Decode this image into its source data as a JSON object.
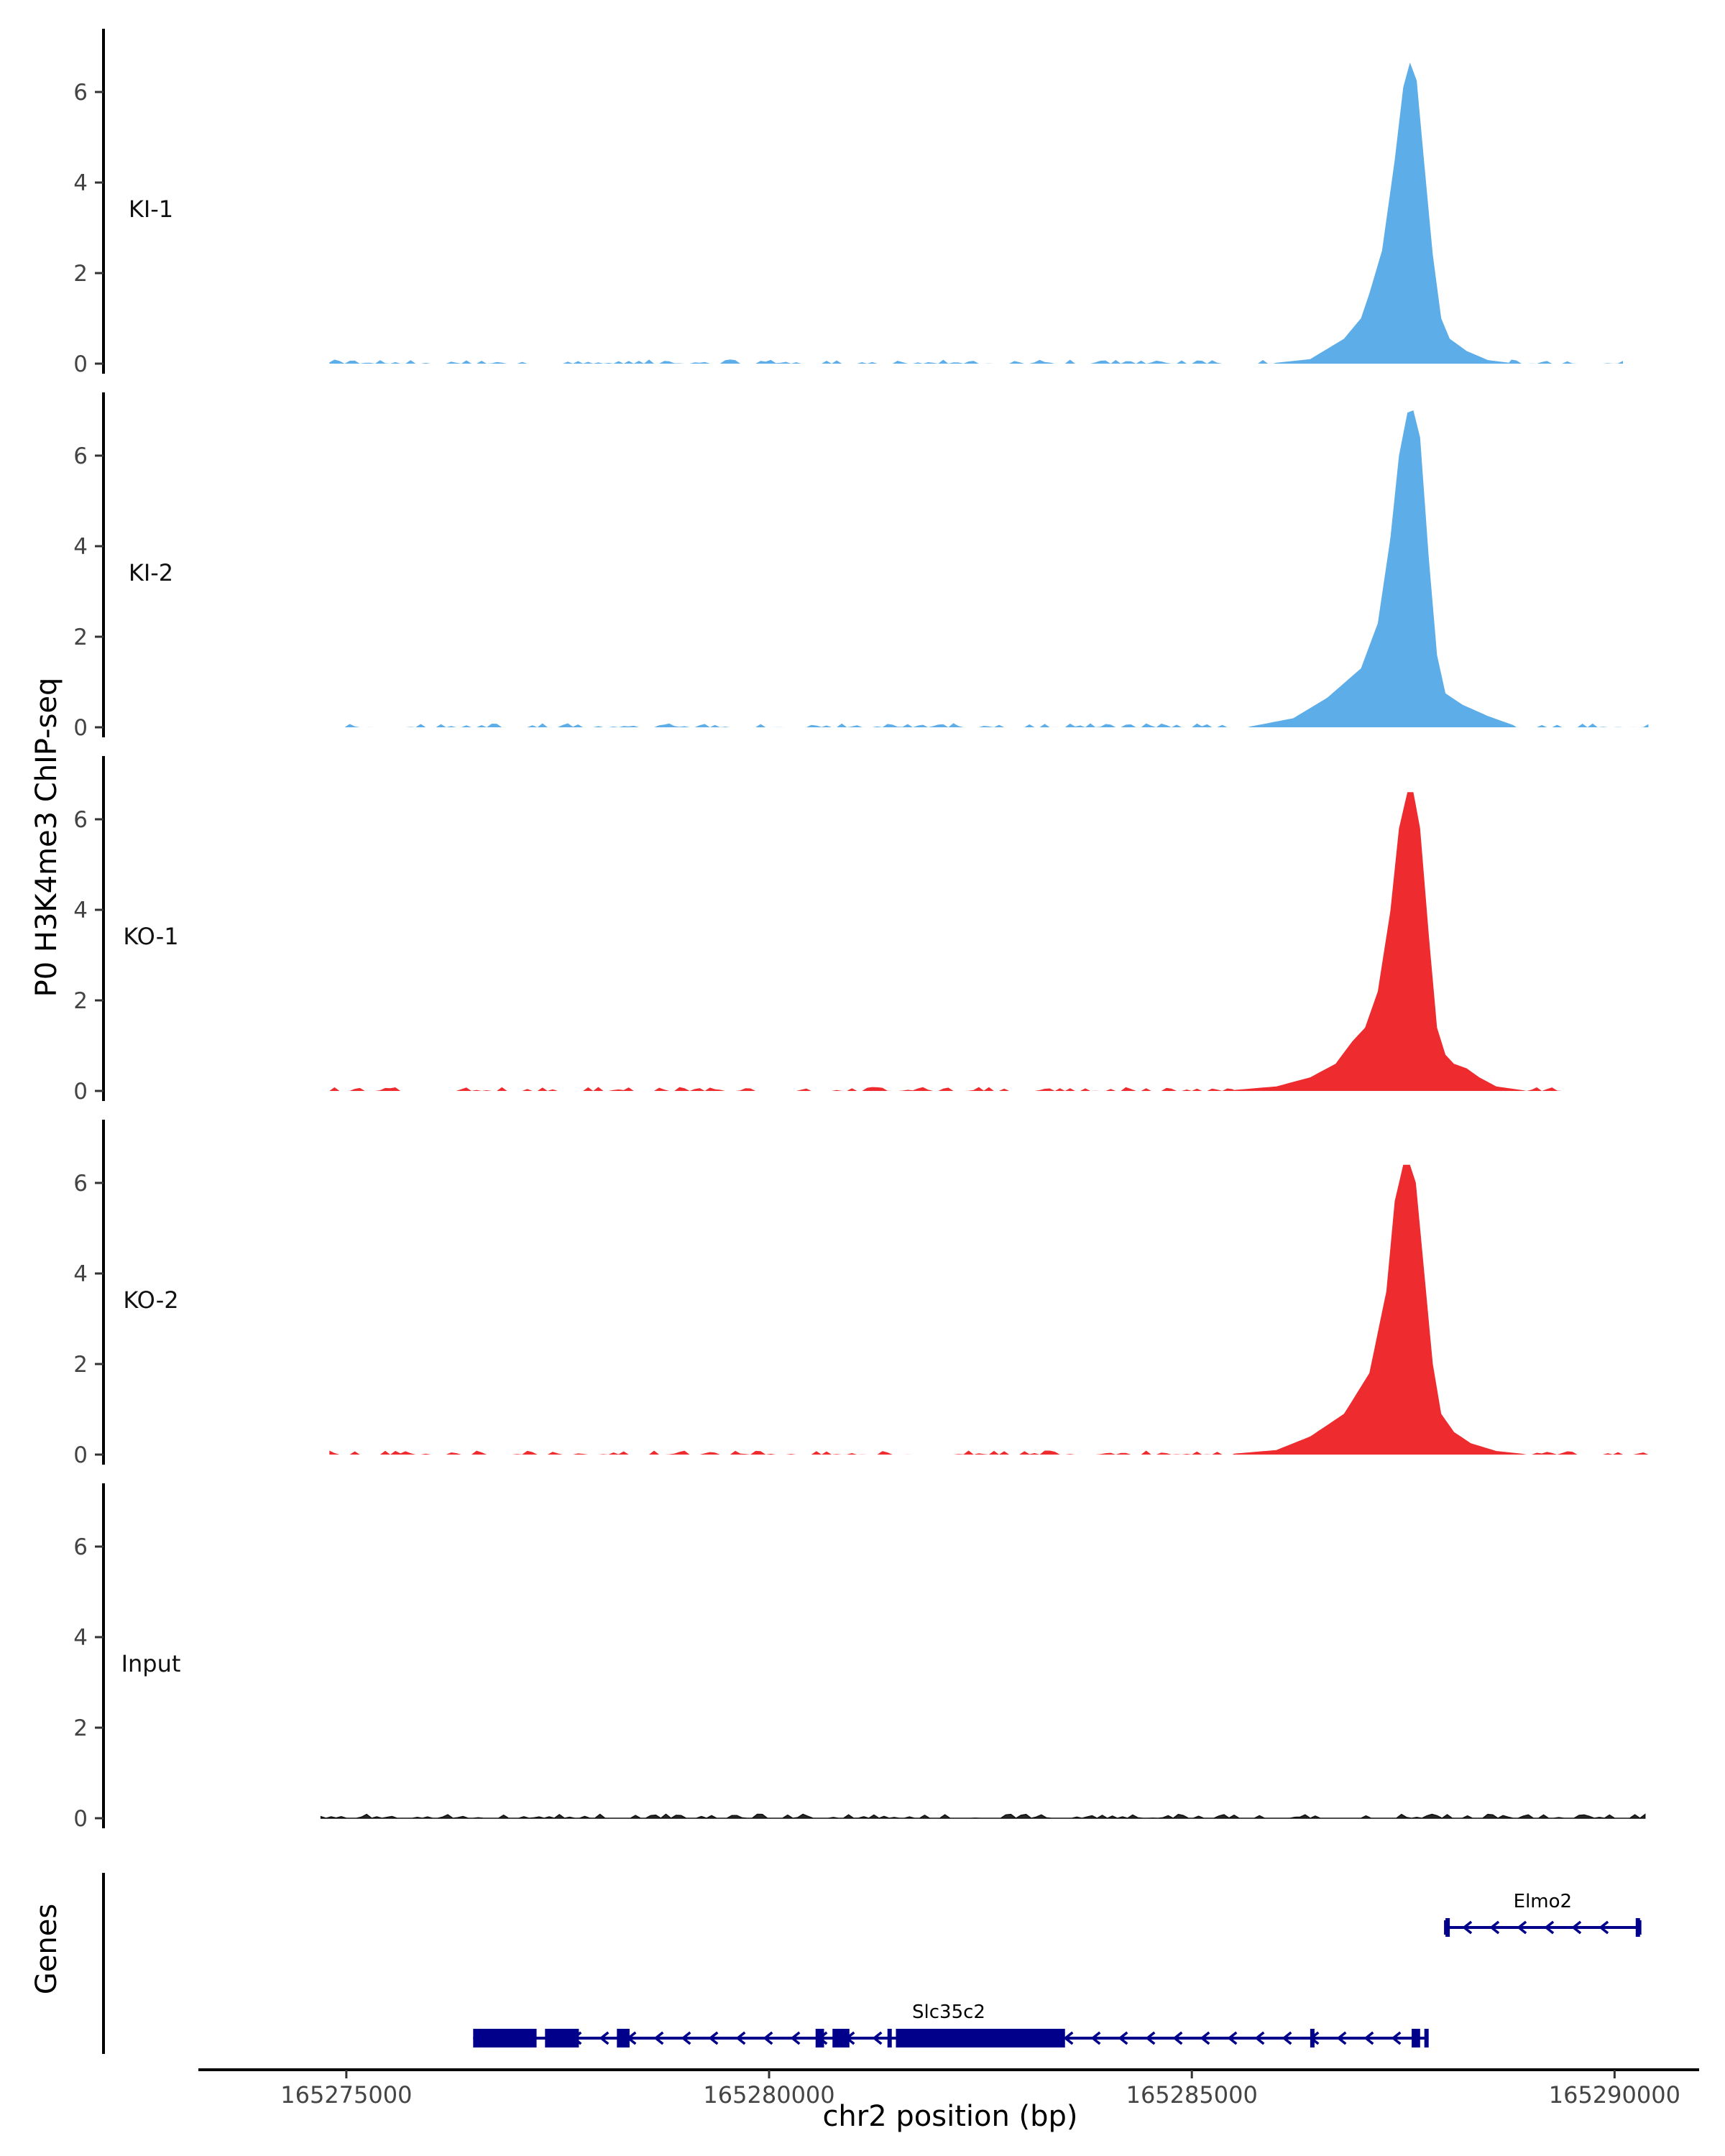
{
  "chart_data": {
    "type": "area",
    "title": "",
    "ylabel": "P0 H3K4me3 ChIP-seq",
    "xlabel": "chr2 position (bp)",
    "x_range": [
      165273250,
      165291000
    ],
    "xticks": [
      165275000,
      165280000,
      165285000,
      165290000
    ],
    "xtick_labels": [
      "165275000",
      "165280000",
      "165285000",
      "165290000"
    ],
    "ylim": [
      0,
      7.4
    ],
    "yticks": [
      0,
      2,
      4,
      6
    ],
    "ytick_labels": [
      "0",
      "2",
      "4",
      "6"
    ],
    "colors": {
      "KI": "#5DADE8",
      "KO": "#EE2B2E",
      "Input": "#111111",
      "gene": "#00008B"
    },
    "tracks": [
      {
        "name": "KI-1",
        "color": "#5DADE8",
        "x_start": 165274800,
        "x_end": 165290100,
        "x": [
          165286000,
          165286400,
          165286800,
          165287000,
          165287100,
          165287250,
          165287400,
          165287500,
          165287580,
          165287660,
          165287750,
          165287850,
          165287950,
          165288050,
          165288250,
          165288500,
          165288750
        ],
        "values": [
          0.02,
          0.1,
          0.55,
          1.0,
          1.55,
          2.5,
          4.5,
          6.1,
          6.65,
          6.25,
          4.4,
          2.4,
          1.0,
          0.55,
          0.28,
          0.08,
          0.02
        ]
      },
      {
        "name": "KI-2",
        "color": "#5DADE8",
        "x_start": 165274800,
        "x_end": 165290400,
        "x": [
          165285700,
          165286200,
          165286600,
          165287000,
          165287200,
          165287350,
          165287450,
          165287550,
          165287620,
          165287700,
          165287800,
          165287900,
          165288000,
          165288200,
          165288500,
          165288800
        ],
        "values": [
          0.02,
          0.2,
          0.65,
          1.3,
          2.3,
          4.2,
          6.0,
          6.95,
          7.0,
          6.4,
          3.8,
          1.6,
          0.75,
          0.5,
          0.25,
          0.05
        ]
      },
      {
        "name": "KO-1",
        "color": "#EE2B2E",
        "x_start": 165274800,
        "x_end": 165289500,
        "x": [
          165285500,
          165286000,
          165286400,
          165286700,
          165286900,
          165287050,
          165287200,
          165287350,
          165287450,
          165287550,
          165287620,
          165287700,
          165287800,
          165287900,
          165288000,
          165288100,
          165288250,
          165288400,
          165288600,
          165288900
        ],
        "values": [
          0.02,
          0.1,
          0.3,
          0.6,
          1.1,
          1.4,
          2.2,
          4.0,
          5.8,
          6.6,
          6.6,
          5.8,
          3.5,
          1.4,
          0.8,
          0.6,
          0.5,
          0.3,
          0.1,
          0.02
        ]
      },
      {
        "name": "KO-2",
        "color": "#EE2B2E",
        "x_start": 165274800,
        "x_end": 165290400,
        "x": [
          165285500,
          165286000,
          165286400,
          165286800,
          165287100,
          165287300,
          165287400,
          165287500,
          165287580,
          165287650,
          165287750,
          165287850,
          165287950,
          165288100,
          165288300,
          165288600,
          165288900
        ],
        "values": [
          0.02,
          0.1,
          0.4,
          0.9,
          1.8,
          3.6,
          5.6,
          6.4,
          6.4,
          6.0,
          4.0,
          2.0,
          0.9,
          0.5,
          0.25,
          0.08,
          0.02
        ]
      },
      {
        "name": "Input",
        "color": "#111111",
        "x_start": 165274700,
        "x_end": 165290400,
        "x": [],
        "values": []
      }
    ],
    "genes_label": "Genes",
    "genes": [
      {
        "name": "Slc35c2",
        "strand": "-",
        "start": 165276500,
        "end": 165287800,
        "exons": [
          [
            165276500,
            165277250
          ],
          [
            165277350,
            165277750
          ],
          [
            165278200,
            165278350
          ],
          [
            165280550,
            165280650
          ],
          [
            165280750,
            165280950
          ],
          [
            165281400,
            165281450
          ],
          [
            165281500,
            165283500
          ],
          [
            165286400,
            165286450
          ],
          [
            165287600,
            165287700
          ],
          [
            165287750,
            165287800
          ]
        ]
      },
      {
        "name": "Elmo2",
        "strand": "-",
        "start": 165288000,
        "end": 165290300,
        "exons": [
          [
            165288000,
            165288050
          ],
          [
            165290250,
            165290300
          ]
        ]
      }
    ]
  }
}
